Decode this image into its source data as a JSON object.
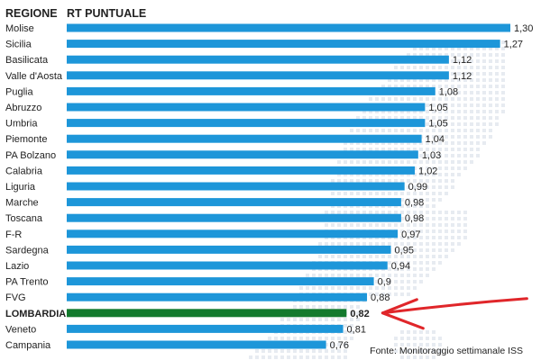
{
  "header": {
    "region_label": "REGIONE",
    "value_label": "RT PUNTUALE"
  },
  "source": "Fonte: Monitoraggio settimanale ISS",
  "colors": {
    "bar": "#1d96d9",
    "highlight_bar": "#137a2d",
    "arrow": "#e0262a",
    "map_dots": "#e7ebf1"
  },
  "background_icon": "italy-map-dots-icon",
  "chart_data": {
    "type": "bar",
    "orientation": "horizontal",
    "xlim": [
      0,
      1.3
    ],
    "categories": [
      "Molise",
      "Sicilia",
      "Basilicata",
      "Valle d'Aosta",
      "Puglia",
      "Abruzzo",
      "Umbria",
      "Piemonte",
      "PA Bolzano",
      "Calabria",
      "Liguria",
      "Marche",
      "Toscana",
      "F-R",
      "Sardegna",
      "Lazio",
      "PA Trento",
      "FVG",
      "LOMBARDIA",
      "Veneto",
      "Campania"
    ],
    "values": [
      1.3,
      1.27,
      1.12,
      1.12,
      1.08,
      1.05,
      1.05,
      1.04,
      1.03,
      1.02,
      0.99,
      0.98,
      0.98,
      0.97,
      0.95,
      0.94,
      0.9,
      0.88,
      0.82,
      0.81,
      0.76
    ],
    "value_labels": [
      "1,30",
      "1,27",
      "1,12",
      "1,12",
      "1,08",
      "1,05",
      "1,05",
      "1,04",
      "1,03",
      "1,02",
      "0,99",
      "0,98",
      "0,98",
      "0,97",
      "0,95",
      "0,94",
      "0,9",
      "0,88",
      "0,82",
      "0,81",
      "0,76"
    ],
    "highlight": "LOMBARDIA",
    "grid": false
  }
}
